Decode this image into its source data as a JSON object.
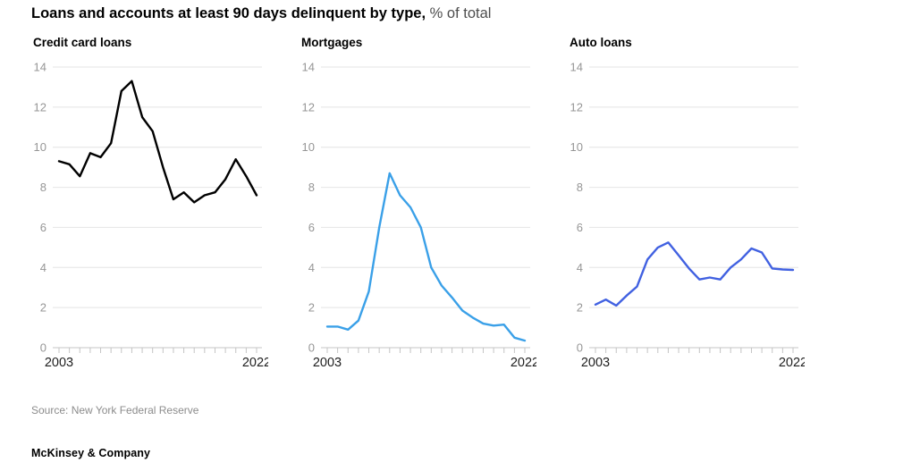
{
  "page": {
    "title_bold": "Loans and accounts at least 90 days delinquent by type,",
    "title_suffix": " % of total",
    "source": "Source: New York Federal Reserve",
    "brand": "McKinsey & Company"
  },
  "colors": {
    "grid": "#e4e4e4",
    "axis": "#c4c4c4",
    "ytick_label": "#969696",
    "xtick_label": "#1f1f1f"
  },
  "chart_data": [
    {
      "type": "line",
      "title": "Credit card loans",
      "line_color": "#000000",
      "x": [
        2003,
        2004,
        2005,
        2006,
        2007,
        2008,
        2009,
        2010,
        2011,
        2012,
        2013,
        2014,
        2015,
        2016,
        2017,
        2018,
        2019,
        2020,
        2021,
        2022
      ],
      "values": [
        9.3,
        9.15,
        8.55,
        9.7,
        9.5,
        10.2,
        12.8,
        13.3,
        11.5,
        10.8,
        9.0,
        7.4,
        7.75,
        7.25,
        7.6,
        7.75,
        8.4,
        9.4,
        8.55,
        7.6
      ],
      "ylim": [
        0,
        14
      ],
      "yticks": [
        0,
        2,
        4,
        6,
        8,
        10,
        12,
        14
      ],
      "xtick_labels": [
        "2003",
        "2022"
      ],
      "grid": true,
      "legend": "none"
    },
    {
      "type": "line",
      "title": "Mortgages",
      "line_color": "#3aa0e8",
      "x": [
        2003,
        2004,
        2005,
        2006,
        2007,
        2008,
        2009,
        2010,
        2011,
        2012,
        2013,
        2014,
        2015,
        2016,
        2017,
        2018,
        2019,
        2020,
        2021,
        2022
      ],
      "values": [
        1.05,
        1.05,
        0.9,
        1.35,
        2.8,
        6.0,
        8.7,
        7.6,
        7.0,
        6.0,
        4.0,
        3.1,
        2.5,
        1.85,
        1.5,
        1.2,
        1.1,
        1.15,
        0.5,
        0.35
      ],
      "ylim": [
        0,
        14
      ],
      "yticks": [
        0,
        2,
        4,
        6,
        8,
        10,
        12,
        14
      ],
      "xtick_labels": [
        "2003",
        "2022"
      ],
      "grid": true,
      "legend": "none"
    },
    {
      "type": "line",
      "title": "Auto loans",
      "line_color": "#4161e1",
      "x": [
        2003,
        2004,
        2005,
        2006,
        2007,
        2008,
        2009,
        2010,
        2011,
        2012,
        2013,
        2014,
        2015,
        2016,
        2017,
        2018,
        2019,
        2020,
        2021,
        2022
      ],
      "values": [
        2.15,
        2.4,
        2.1,
        2.6,
        3.05,
        4.4,
        5.0,
        5.25,
        4.6,
        3.95,
        3.4,
        3.5,
        3.4,
        4.0,
        4.4,
        4.95,
        4.75,
        3.95,
        3.9,
        3.88
      ],
      "ylim": [
        0,
        14
      ],
      "yticks": [
        0,
        2,
        4,
        6,
        8,
        10,
        12,
        14
      ],
      "xtick_labels": [
        "2003",
        "2022"
      ],
      "grid": true,
      "legend": "none"
    }
  ]
}
